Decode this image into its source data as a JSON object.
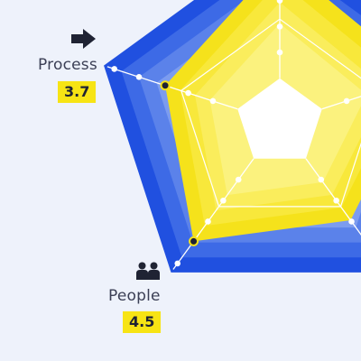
{
  "chart_data": {
    "type": "radar",
    "title": "",
    "scale_max": 5,
    "levels": 5,
    "axes": [
      {
        "label": "Process",
        "value": 3.7,
        "icon": "arrow-right-icon"
      },
      {
        "label": "People",
        "value": 4.5,
        "icon": "people-icon"
      }
    ],
    "visible_only_partially": true,
    "colors": {
      "background": "#eef2fb",
      "outer_ring": "#2050e0",
      "mid_rings": [
        "#3d6ae6",
        "#5b82ea",
        "#7c9cef",
        "#9db6f3"
      ],
      "yellow_fill": [
        "#f5e21b",
        "#f8e83b",
        "#faed5c",
        "#fbf27e"
      ],
      "value_badge": "#f7e414",
      "grid_line": "#ffffff"
    }
  }
}
